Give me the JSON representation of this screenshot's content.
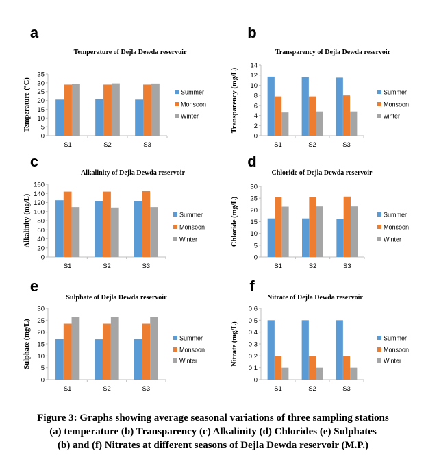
{
  "chart_data": [
    {
      "panel_letter": "a",
      "type": "bar",
      "title": "Temperature of Dejla Dewda reservoir",
      "xlabel": "",
      "ylabel": "Temperature (°C)",
      "categories": [
        "S1",
        "S2",
        "S3"
      ],
      "ylim": [
        0,
        35
      ],
      "yticks": [
        0,
        5,
        10,
        15,
        20,
        25,
        30,
        35
      ],
      "series": [
        {
          "name": "Summer",
          "color": "#5b9bd5",
          "values": [
            20.5,
            20.7,
            20.5
          ]
        },
        {
          "name": "Monsoon",
          "color": "#ed7d31",
          "values": [
            29.0,
            29.0,
            29.0
          ]
        },
        {
          "name": "Winter",
          "color": "#a5a5a5",
          "values": [
            29.4,
            29.7,
            29.6
          ]
        }
      ],
      "grid": false,
      "legend": "right"
    },
    {
      "panel_letter": "b",
      "type": "bar",
      "title": "Transparency of Dejla Dewda reservoir",
      "xlabel": "",
      "ylabel": "Transparency (mg/L)",
      "categories": [
        "S1",
        "S2",
        "S3"
      ],
      "ylim": [
        0,
        14
      ],
      "yticks": [
        0,
        2,
        4,
        6,
        8,
        10,
        12,
        14
      ],
      "series": [
        {
          "name": "Summer",
          "color": "#5b9bd5",
          "values": [
            11.7,
            11.6,
            11.5
          ]
        },
        {
          "name": "Monsoon",
          "color": "#ed7d31",
          "values": [
            7.8,
            7.8,
            8.0
          ]
        },
        {
          "name": "winter",
          "color": "#a5a5a5",
          "values": [
            4.6,
            4.8,
            4.8
          ]
        }
      ],
      "grid": false,
      "legend": "right"
    },
    {
      "panel_letter": "c",
      "type": "bar",
      "title": "Alkalinity of Dejla Dewda reservoir",
      "xlabel": "",
      "ylabel": "Alkalinity (mg/L)",
      "categories": [
        "S1",
        "S2",
        "S3"
      ],
      "ylim": [
        0,
        160
      ],
      "yticks": [
        0,
        20,
        40,
        60,
        80,
        100,
        120,
        140,
        160
      ],
      "series": [
        {
          "name": "Summer",
          "color": "#5b9bd5",
          "values": [
            125,
            123,
            123
          ]
        },
        {
          "name": "Monsoon",
          "color": "#ed7d31",
          "values": [
            144,
            144,
            145
          ]
        },
        {
          "name": "Winter",
          "color": "#a5a5a5",
          "values": [
            110,
            109,
            110
          ]
        }
      ],
      "grid": false,
      "legend": "right"
    },
    {
      "panel_letter": "d",
      "type": "bar",
      "title": "Chloride of Dejla Dewda reservoir",
      "xlabel": "",
      "ylabel": "Chloride (mg/L)",
      "categories": [
        "S1",
        "S2",
        "S3"
      ],
      "ylim": [
        0,
        30
      ],
      "yticks": [
        0,
        5,
        10,
        15,
        20,
        25,
        30
      ],
      "series": [
        {
          "name": "Summer",
          "color": "#5b9bd5",
          "values": [
            16.4,
            16.4,
            16.3
          ]
        },
        {
          "name": "Monsoon",
          "color": "#ed7d31",
          "values": [
            25.6,
            25.5,
            25.7
          ]
        },
        {
          "name": "Winter",
          "color": "#a5a5a5",
          "values": [
            21.4,
            21.5,
            21.5
          ]
        }
      ],
      "grid": false,
      "legend": "right"
    },
    {
      "panel_letter": "e",
      "type": "bar",
      "title": "Sulphate  of  Dejla Dewda reservoir",
      "xlabel": "",
      "ylabel": "Sulphate (mg/L)",
      "categories": [
        "S1",
        "S2",
        "S3"
      ],
      "ylim": [
        0,
        30
      ],
      "yticks": [
        0,
        5,
        10,
        15,
        20,
        25,
        30
      ],
      "series": [
        {
          "name": "Summer",
          "color": "#5b9bd5",
          "values": [
            17.1,
            17.0,
            17.1
          ]
        },
        {
          "name": "Monsoon",
          "color": "#ed7d31",
          "values": [
            23.5,
            23.5,
            23.5
          ]
        },
        {
          "name": "Winter",
          "color": "#a5a5a5",
          "values": [
            26.5,
            26.5,
            26.5
          ]
        }
      ],
      "grid": false,
      "legend": "right"
    },
    {
      "panel_letter": "f",
      "type": "bar",
      "title": "Nitrate of  Dejla Dewda reservoir",
      "xlabel": "",
      "ylabel": "Nitrate (mg/L)",
      "categories": [
        "S1",
        "S2",
        "S3"
      ],
      "ylim": [
        0,
        0.6
      ],
      "yticks": [
        0,
        0.1,
        0.2,
        0.3,
        0.4,
        0.5,
        0.6
      ],
      "series": [
        {
          "name": "Summer",
          "color": "#5b9bd5",
          "values": [
            0.5,
            0.5,
            0.5
          ]
        },
        {
          "name": "Monsoon",
          "color": "#ed7d31",
          "values": [
            0.2,
            0.2,
            0.2
          ]
        },
        {
          "name": "Winter",
          "color": "#a5a5a5",
          "values": [
            0.1,
            0.1,
            0.1
          ]
        }
      ],
      "grid": false,
      "legend": "right"
    }
  ],
  "caption": {
    "line1": "Figure 3: Graphs showing average seasonal variations of three sampling stations",
    "line2": "(a) temperature (b) Transparency (c) Alkalinity (d) Chlorides (e) Sulphates",
    "line3": "(b) and (f) Nitrates at different seasons of Dejla Dewda reservoir (M.P.)"
  }
}
